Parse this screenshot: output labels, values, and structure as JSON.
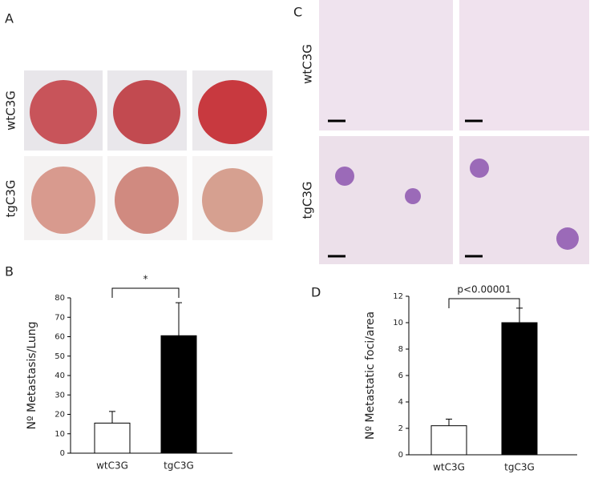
{
  "panels": {
    "labels": [
      "A",
      "B",
      "C",
      "D"
    ]
  },
  "photo_rows": [
    "wtC3G",
    "tgC3G"
  ],
  "histology_rows": [
    "wtC3G",
    "tgC3G"
  ],
  "chart_data": [
    {
      "type": "bar",
      "y_label": "Nº Metastasis/Lung",
      "annotation": "*",
      "categories": [
        "wtC3G",
        "tgC3G"
      ],
      "values": [
        15.5,
        60.5
      ],
      "errors": [
        6,
        17
      ],
      "colors": [
        "#ffffff",
        "#000000"
      ],
      "ylim": [
        0,
        80
      ],
      "yticks": [
        0,
        10,
        20,
        30,
        40,
        50,
        60,
        70,
        80
      ]
    },
    {
      "type": "bar",
      "y_label": "Nº Metastatic foci/area",
      "annotation": "p<0.00001",
      "categories": [
        "wtC3G",
        "tgC3G"
      ],
      "values": [
        2.2,
        10
      ],
      "errors": [
        0.5,
        1.1
      ],
      "colors": [
        "#ffffff",
        "#000000"
      ],
      "ylim": [
        0,
        12
      ],
      "yticks": [
        0,
        2,
        4,
        6,
        8,
        10,
        12
      ]
    }
  ]
}
